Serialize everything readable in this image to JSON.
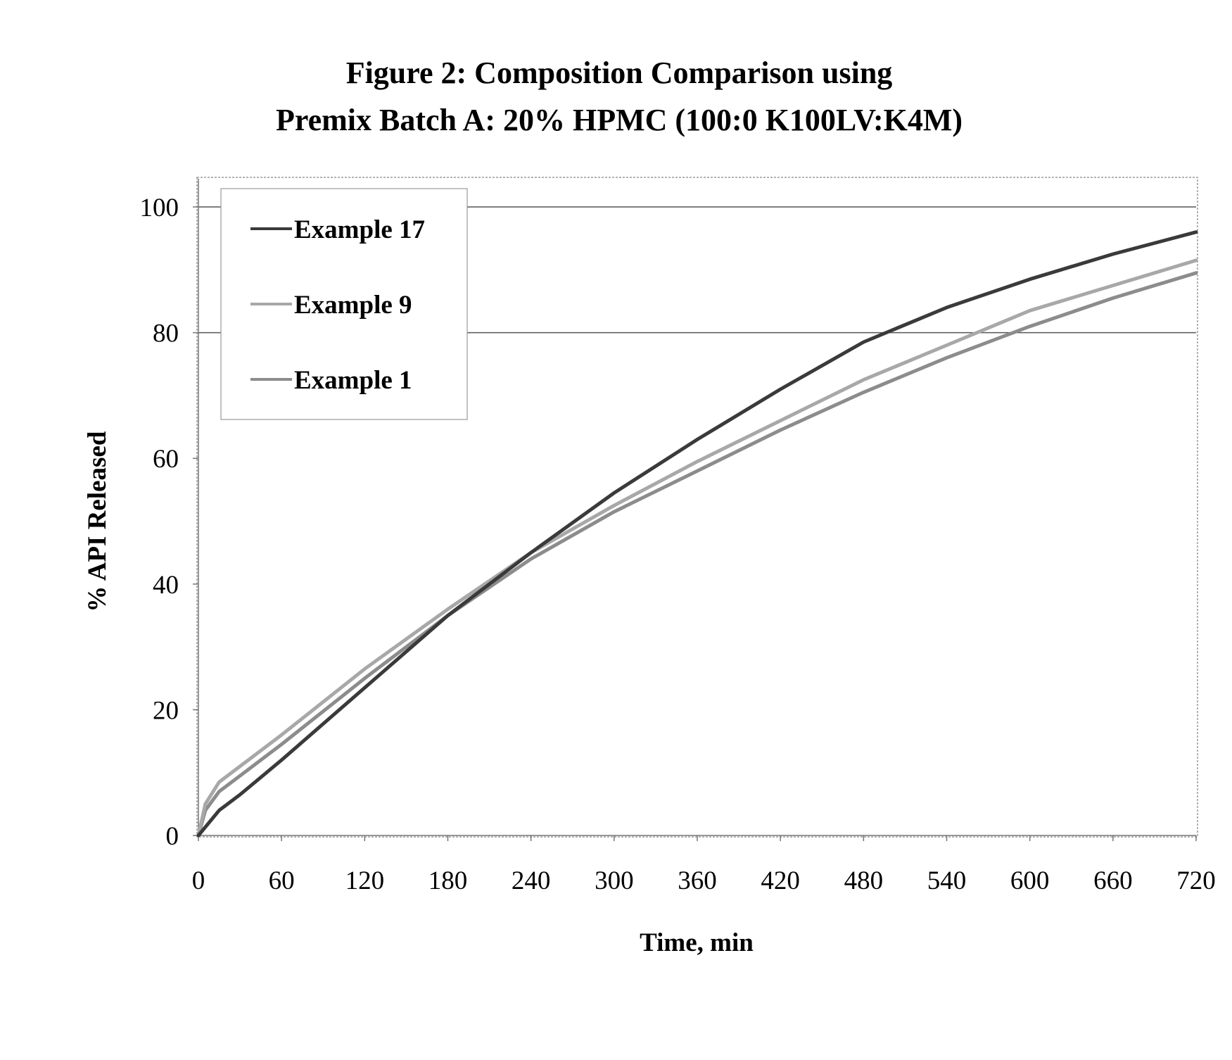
{
  "chart_data": {
    "type": "line",
    "title_line1": "Figure 2: Composition Comparison using",
    "title_line2": "Premix Batch A: 20% HPMC (100:0 K100LV:K4M)",
    "xlabel": "Time, min",
    "ylabel": "% API Released",
    "xlim": [
      0,
      720
    ],
    "ylim": [
      0,
      100
    ],
    "xticks": [
      0,
      60,
      120,
      180,
      240,
      300,
      360,
      420,
      480,
      540,
      600,
      660,
      720
    ],
    "yticks": [
      0,
      20,
      40,
      60,
      80,
      100
    ],
    "xtick_labels": [
      "0",
      "60",
      "120",
      "180",
      "240",
      "300",
      "360",
      "420",
      "480",
      "540",
      "600",
      "660",
      "720"
    ],
    "ytick_labels": [
      "0",
      "20",
      "40",
      "60",
      "80",
      "100"
    ],
    "gridlines_y": [
      80,
      100
    ],
    "legend_position": "top-left",
    "series": [
      {
        "name": "Example 17",
        "color": "#3a3a3a",
        "x": [
          0,
          15,
          30,
          60,
          120,
          180,
          240,
          300,
          360,
          420,
          480,
          540,
          600,
          660,
          720
        ],
        "y": [
          0,
          4,
          6.5,
          12,
          23.5,
          35,
          45,
          54.5,
          63,
          71,
          78.5,
          84,
          88.5,
          92.5,
          96
        ]
      },
      {
        "name": "Example 9",
        "color": "#a8a8a8",
        "x": [
          0,
          5,
          15,
          30,
          60,
          120,
          180,
          240,
          300,
          360,
          420,
          480,
          540,
          600,
          660,
          720
        ],
        "y": [
          0,
          5,
          8.5,
          11,
          16,
          26.5,
          36,
          45,
          52.5,
          59.5,
          66,
          72.5,
          78,
          83.5,
          87.5,
          91.5
        ]
      },
      {
        "name": "Example 1",
        "color": "#8c8c8c",
        "x": [
          0,
          5,
          15,
          30,
          60,
          120,
          180,
          240,
          300,
          360,
          420,
          480,
          540,
          600,
          660,
          720
        ],
        "y": [
          0,
          4,
          7,
          9.5,
          14.5,
          25,
          35,
          44,
          51.5,
          58,
          64.5,
          70.5,
          76,
          81,
          85.5,
          89.5
        ]
      }
    ]
  }
}
